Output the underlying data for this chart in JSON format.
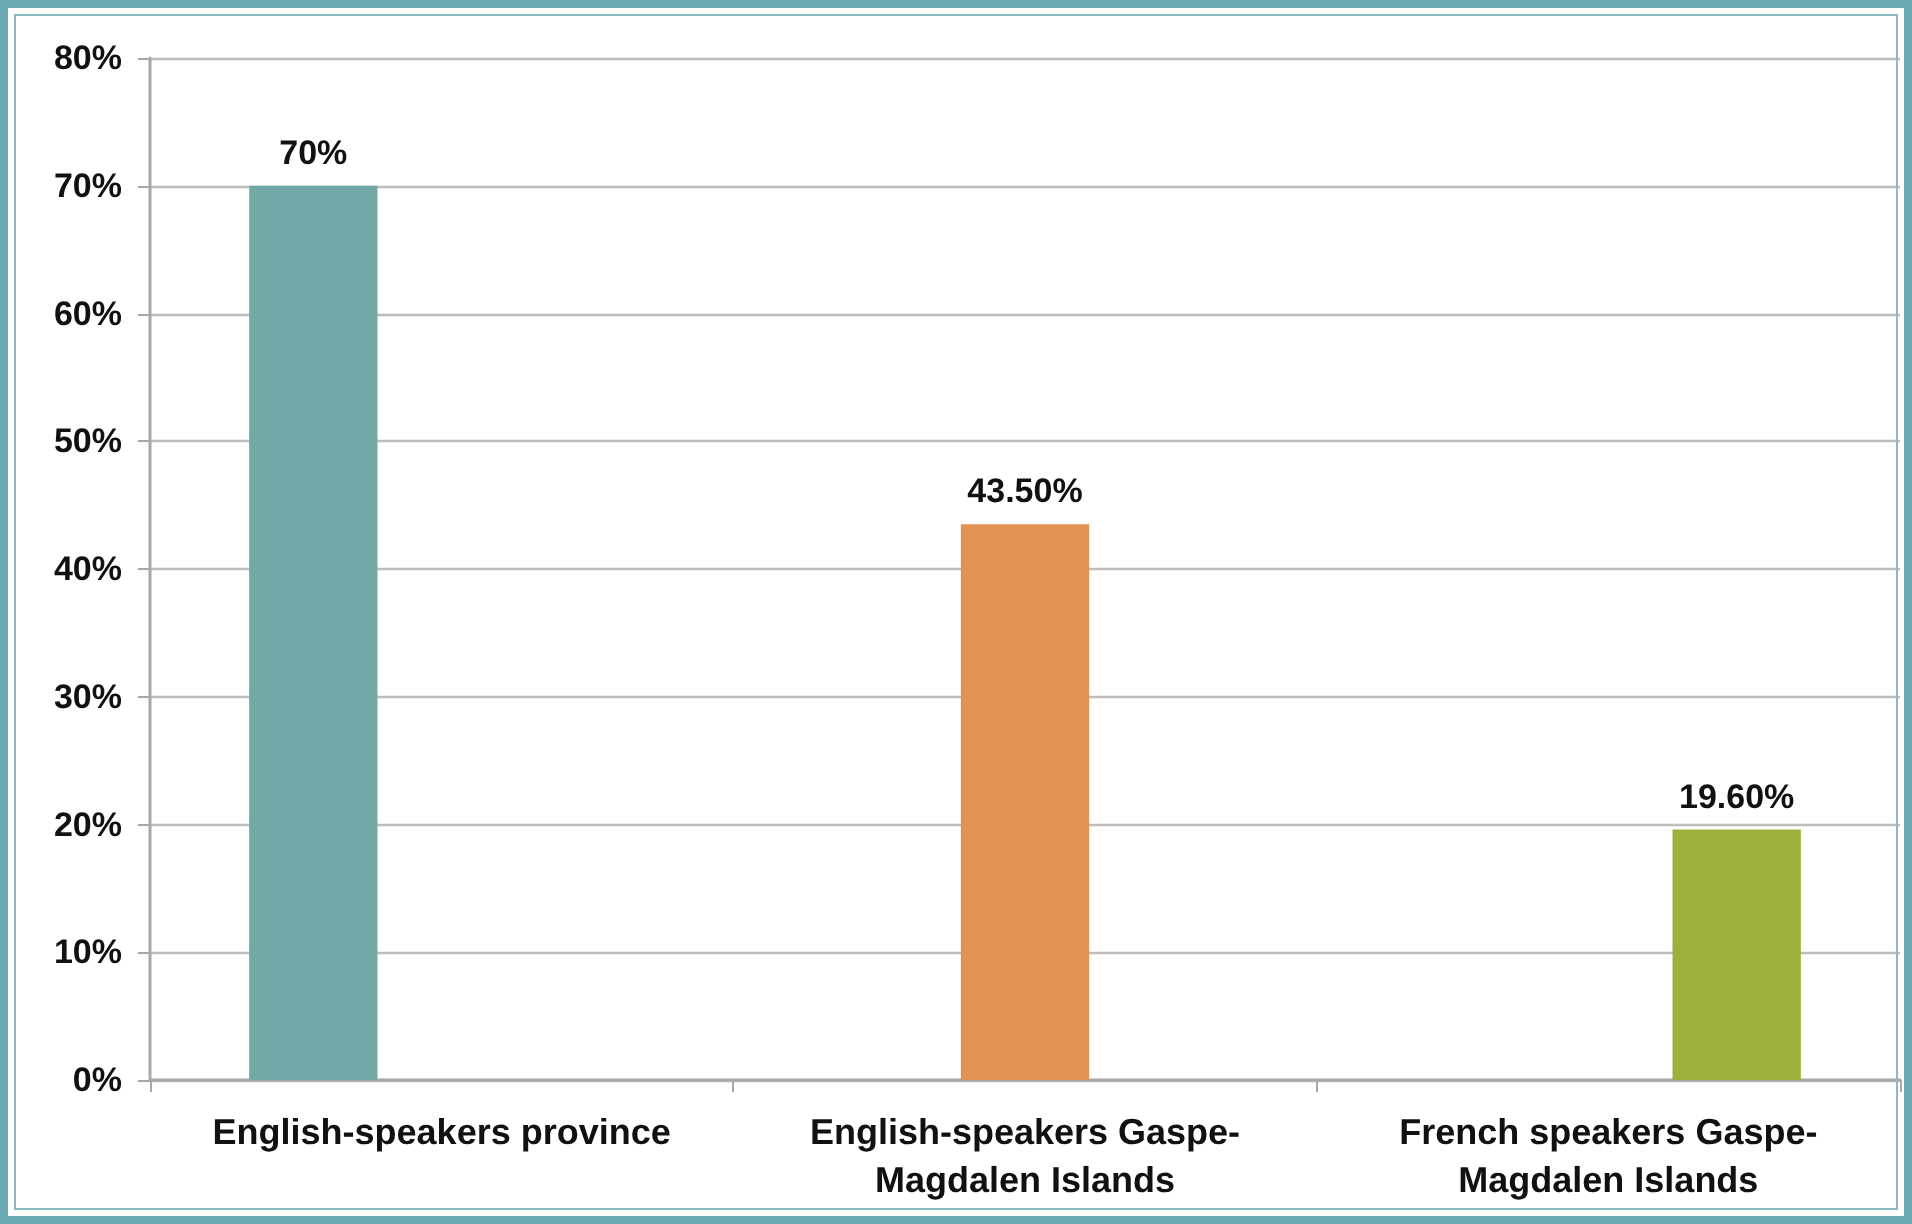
{
  "chart_data": {
    "type": "bar",
    "categories": [
      "English-speakers province",
      "English-speakers Gaspe-Magdalen Islands",
      "French speakers Gaspe-Magdalen Islands"
    ],
    "series": [
      {
        "color": "#72a9a7",
        "values": [
          70,
          null,
          null
        ],
        "value_labels": [
          "70%",
          null,
          null
        ]
      },
      {
        "color": "#e39255",
        "values": [
          null,
          43.5,
          null
        ],
        "value_labels": [
          null,
          "43.50%",
          null
        ]
      },
      {
        "color": "#9cb03c",
        "values": [
          null,
          null,
          19.6
        ],
        "value_labels": [
          null,
          null,
          "19.60%"
        ]
      }
    ],
    "ylim": [
      0,
      80
    ],
    "yticks": [
      {
        "value": 0,
        "label": "0%"
      },
      {
        "value": 10,
        "label": "10%"
      },
      {
        "value": 20,
        "label": "20%"
      },
      {
        "value": 30,
        "label": "30%"
      },
      {
        "value": 40,
        "label": "40%"
      },
      {
        "value": 50,
        "label": "50%"
      },
      {
        "value": 60,
        "label": "60%"
      },
      {
        "value": 70,
        "label": "70%"
      },
      {
        "value": 80,
        "label": "80%"
      }
    ],
    "grid": "y"
  }
}
